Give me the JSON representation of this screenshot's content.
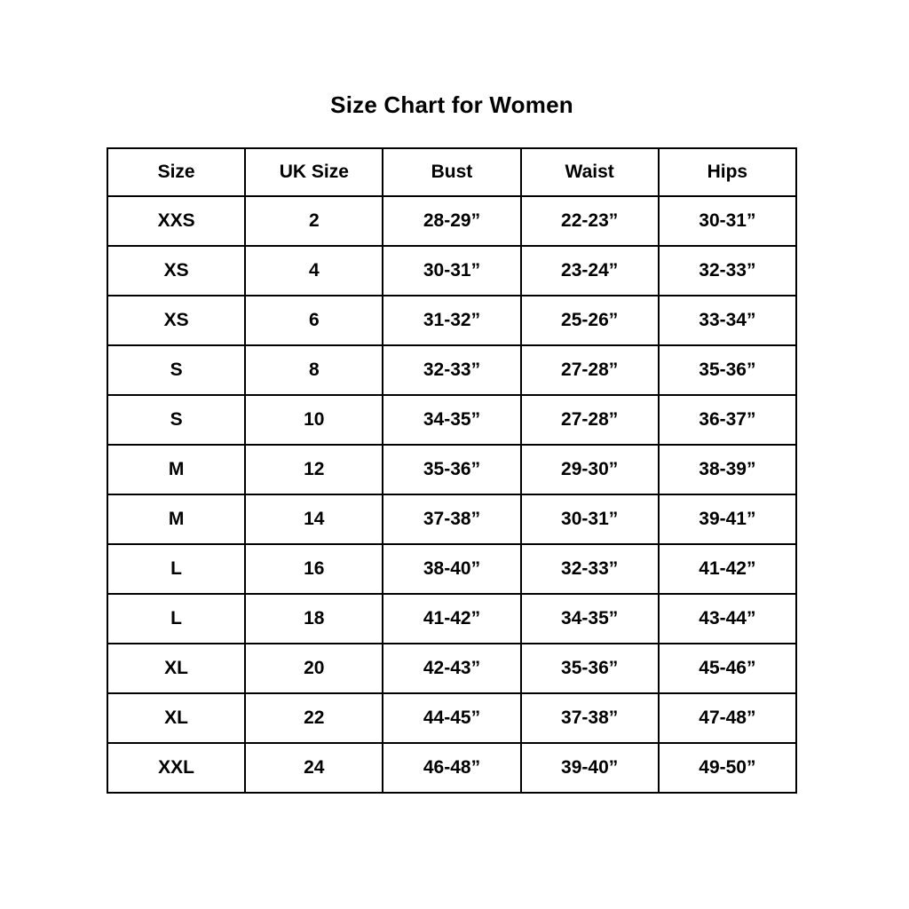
{
  "page": {
    "title": "Size Chart for Women"
  },
  "colors": {
    "background": "#ffffff",
    "text": "#000000",
    "border": "#000000"
  },
  "chart_data": {
    "type": "table",
    "title": "Size Chart for Women",
    "columns": [
      "Size",
      "UK Size",
      "Bust",
      "Waist",
      "Hips"
    ],
    "rows": [
      [
        "XXS",
        "2",
        "28-29”",
        "22-23”",
        "30-31”"
      ],
      [
        "XS",
        "4",
        "30-31”",
        "23-24”",
        "32-33”"
      ],
      [
        "XS",
        "6",
        "31-32”",
        "25-26”",
        "33-34”"
      ],
      [
        "S",
        "8",
        "32-33”",
        "27-28”",
        "35-36”"
      ],
      [
        "S",
        "10",
        "34-35”",
        "27-28”",
        "36-37”"
      ],
      [
        "M",
        "12",
        "35-36”",
        "29-30”",
        "38-39”"
      ],
      [
        "M",
        "14",
        "37-38”",
        "30-31”",
        "39-41”"
      ],
      [
        "L",
        "16",
        "38-40”",
        "32-33”",
        "41-42”"
      ],
      [
        "L",
        "18",
        "41-42”",
        "34-35”",
        "43-44”"
      ],
      [
        "XL",
        "20",
        "42-43”",
        "35-36”",
        "45-46”"
      ],
      [
        "XL",
        "22",
        "44-45”",
        "37-38”",
        "47-48”"
      ],
      [
        "XXL",
        "24",
        "46-48”",
        "39-40”",
        "49-50”"
      ]
    ]
  }
}
